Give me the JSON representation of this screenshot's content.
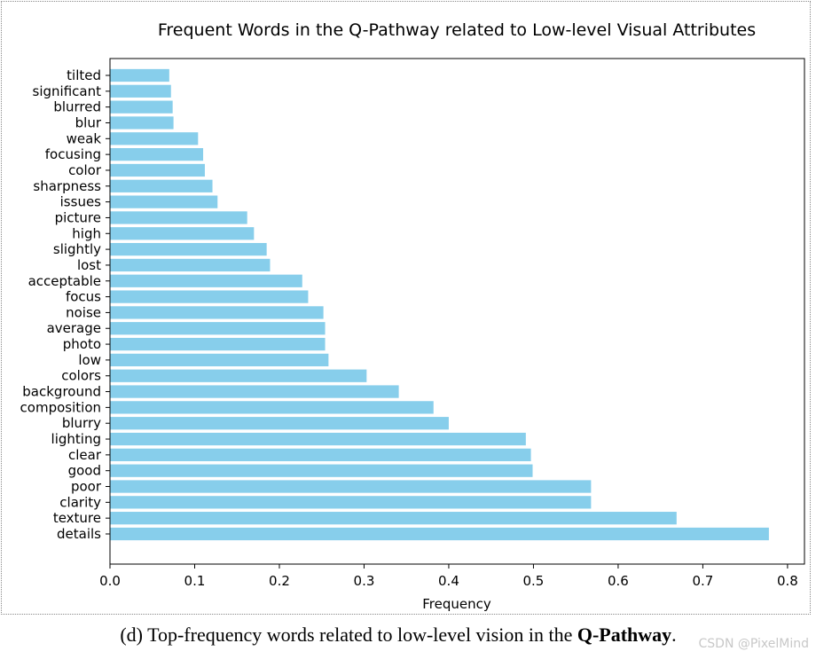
{
  "chart_data": {
    "type": "bar",
    "orientation": "horizontal",
    "title": "Frequent Words in the Q-Pathway related to Low-level Visual Attributes",
    "xlabel": "Frequency",
    "ylabel": "",
    "xlim": [
      0.0,
      0.82
    ],
    "xticks": [
      "0.0",
      "0.1",
      "0.2",
      "0.3",
      "0.4",
      "0.5",
      "0.6",
      "0.7",
      "0.8"
    ],
    "bar_color": "#87ceeb",
    "categories": [
      "tilted",
      "significant",
      "blurred",
      "blur",
      "weak",
      "focusing",
      "color",
      "sharpness",
      "issues",
      "picture",
      "high",
      "slightly",
      "lost",
      "acceptable",
      "focus",
      "noise",
      "average",
      "photo",
      "low",
      "colors",
      "background",
      "composition",
      "blurry",
      "lighting",
      "clear",
      "good",
      "poor",
      "clarity",
      "texture",
      "details"
    ],
    "values": [
      0.07,
      0.072,
      0.074,
      0.075,
      0.104,
      0.11,
      0.112,
      0.121,
      0.127,
      0.162,
      0.17,
      0.185,
      0.189,
      0.227,
      0.234,
      0.252,
      0.254,
      0.254,
      0.258,
      0.303,
      0.341,
      0.382,
      0.4,
      0.491,
      0.497,
      0.499,
      0.568,
      0.568,
      0.669,
      0.778
    ]
  },
  "caption": {
    "prefix": "(d) Top-frequency words related to low-level vision in the ",
    "bold": "Q-Pathway",
    "suffix": "."
  },
  "watermark": "CSDN @PixelMind"
}
